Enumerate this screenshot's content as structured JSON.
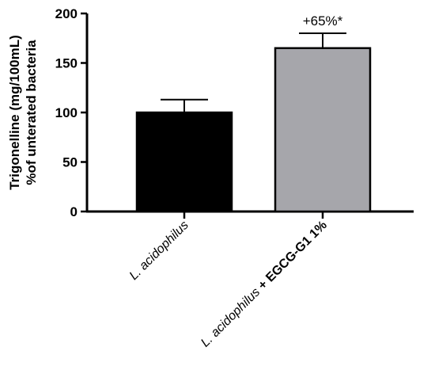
{
  "chart_data": {
    "type": "bar",
    "categories": [
      {
        "italic": "L. acidophilus",
        "rest": ""
      },
      {
        "italic": "L. acidophilus",
        "rest": " + EGCG-G1 1%"
      }
    ],
    "values": [
      100,
      165
    ],
    "errors": [
      13,
      15
    ],
    "bar_colors": [
      "#000000",
      "#a6a6ab"
    ],
    "ylabel_line1": "Trigonelline (mg/100mL)",
    "ylabel_line2": "%of unterated bacteria",
    "ylim": [
      0,
      200
    ],
    "yticks": [
      "0",
      "50",
      "100",
      "150",
      "200"
    ],
    "annotation": "+65%*",
    "grid": false
  }
}
